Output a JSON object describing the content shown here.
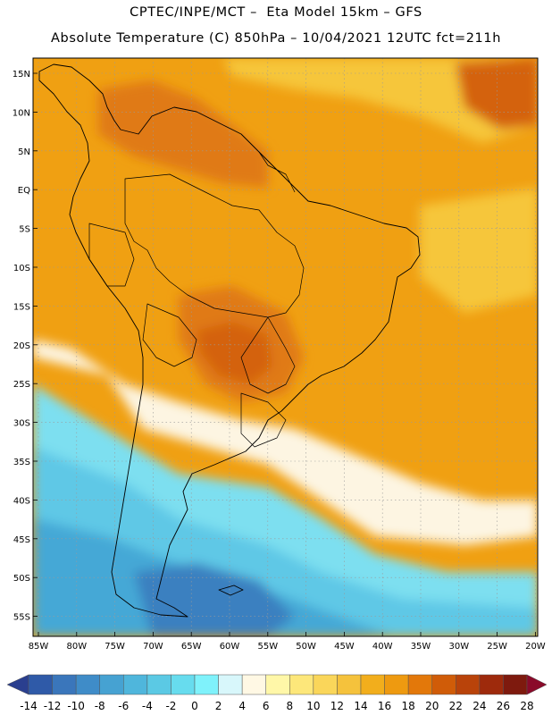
{
  "header": {
    "line1": "CPTEC/INPE/MCT –  Eta Model 15km – GFS",
    "line2": "Absolute Temperature (C) 850hPa – 10/04/2021 12UTC fct=211h"
  },
  "axes": {
    "lat_labels": [
      "15N",
      "10N",
      "5N",
      "EQ",
      "5S",
      "10S",
      "15S",
      "20S",
      "25S",
      "30S",
      "35S",
      "40S",
      "45S",
      "50S",
      "55S"
    ],
    "lon_labels": [
      "85W",
      "80W",
      "75W",
      "70W",
      "65W",
      "60W",
      "55W",
      "50W",
      "45W",
      "40W",
      "35W",
      "30W",
      "25W",
      "20W"
    ]
  },
  "colorbar": {
    "ticks": [
      "-14",
      "-12",
      "-10",
      "-8",
      "-6",
      "-4",
      "-2",
      "0",
      "2",
      "4",
      "6",
      "8",
      "10",
      "12",
      "14",
      "16",
      "18",
      "20",
      "22",
      "24",
      "26",
      "28"
    ],
    "colors": [
      "#2a3f8f",
      "#2f5aa8",
      "#3a76bb",
      "#3f8cc8",
      "#46a2d2",
      "#4fb6dc",
      "#5bc9e4",
      "#67dcee",
      "#7ff2fb",
      "#d8f7fb",
      "#fff8e4",
      "#fff7a8",
      "#fde77a",
      "#fad65a",
      "#f5c23c",
      "#f2ae1c",
      "#ee9a10",
      "#e3780a",
      "#d05c08",
      "#b9430a",
      "#9e2a0c",
      "#7e1a0e",
      "#8a0a2a"
    ]
  },
  "map": {
    "colors": {
      "orange": "#f0a012",
      "yellow": "#f6c63a",
      "darkorange": "#e07a12",
      "red": "#d4620c",
      "cream": "#fdf5e2",
      "cyan": "#7ddff0",
      "lightblue": "#5ec8e6",
      "blue": "#44a8d6",
      "deepblue": "#3a80c0",
      "navy": "#3468ae"
    }
  }
}
